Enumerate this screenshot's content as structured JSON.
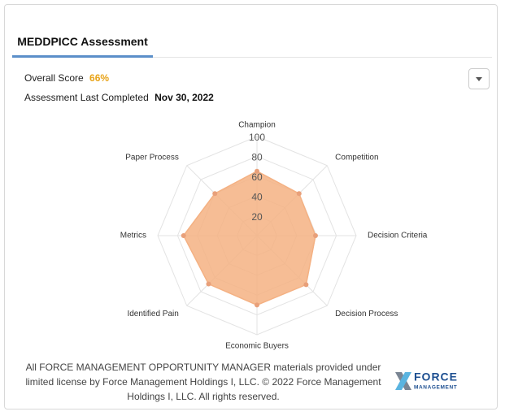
{
  "tab": "MEDDPICC Assessment",
  "overall_score_label": "Overall Score",
  "overall_score": "66%",
  "last_completed_label": "Assessment Last Completed",
  "last_completed": "Nov 30, 2022",
  "chart_data": {
    "type": "radar",
    "categories": [
      "Champion",
      "Competition",
      "Decision Criteria",
      "Decision Process",
      "Economic Buyers",
      "Identified Pain",
      "Metrics",
      "Paper Process"
    ],
    "values": [
      65,
      60,
      59,
      70,
      70,
      69,
      74,
      60
    ],
    "color": "#f4b183",
    "ylim": [
      0,
      100
    ],
    "yticks": [
      20,
      40,
      60,
      80,
      100
    ],
    "grid": true
  },
  "footer": "All FORCE MANAGEMENT OPPORTUNITY MANAGER materials provided under limited license by Force Management Holdings I, LLC. © 2022 Force Management Holdings I, LLC. All rights reserved.",
  "logo": {
    "word1": "FORCE",
    "word2": "MANAGEMENT"
  }
}
